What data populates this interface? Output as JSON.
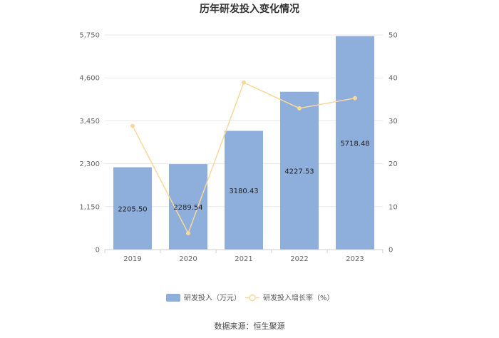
{
  "chart_data": {
    "type": "bar",
    "title": "历年研发投入变化情况",
    "categories": [
      "2019",
      "2020",
      "2021",
      "2022",
      "2023"
    ],
    "series": [
      {
        "name": "研发投入（万元）",
        "type": "bar",
        "axis": "left",
        "values": [
          2205.5,
          2289.54,
          3180.43,
          4227.53,
          5718.48
        ],
        "labels": [
          "2205.50",
          "2289.54",
          "3180.43",
          "4227.53",
          "5718.48"
        ]
      },
      {
        "name": "研发投入增长率（%）",
        "type": "line",
        "axis": "right",
        "values": [
          28.8,
          3.81,
          38.91,
          32.92,
          35.27
        ]
      }
    ],
    "y_left": {
      "min": 0,
      "max": 5750,
      "ticks": [
        0,
        1150,
        2300,
        3450,
        4600,
        5750
      ],
      "tick_labels": [
        "0",
        "1,150",
        "2,300",
        "3,450",
        "4,600",
        "5,750"
      ]
    },
    "y_right": {
      "min": 0,
      "max": 50,
      "ticks": [
        0,
        10,
        20,
        30,
        40,
        50
      ],
      "tick_labels": [
        "0",
        "10",
        "20",
        "30",
        "40",
        "50"
      ]
    },
    "colors": {
      "bar": "#8eaedb",
      "line": "#f9d89b",
      "grid": "#e8e8e8",
      "axis": "#cccccc"
    },
    "legend_position": "bottom",
    "grid": true,
    "source": "数据来源：恒生聚源"
  }
}
